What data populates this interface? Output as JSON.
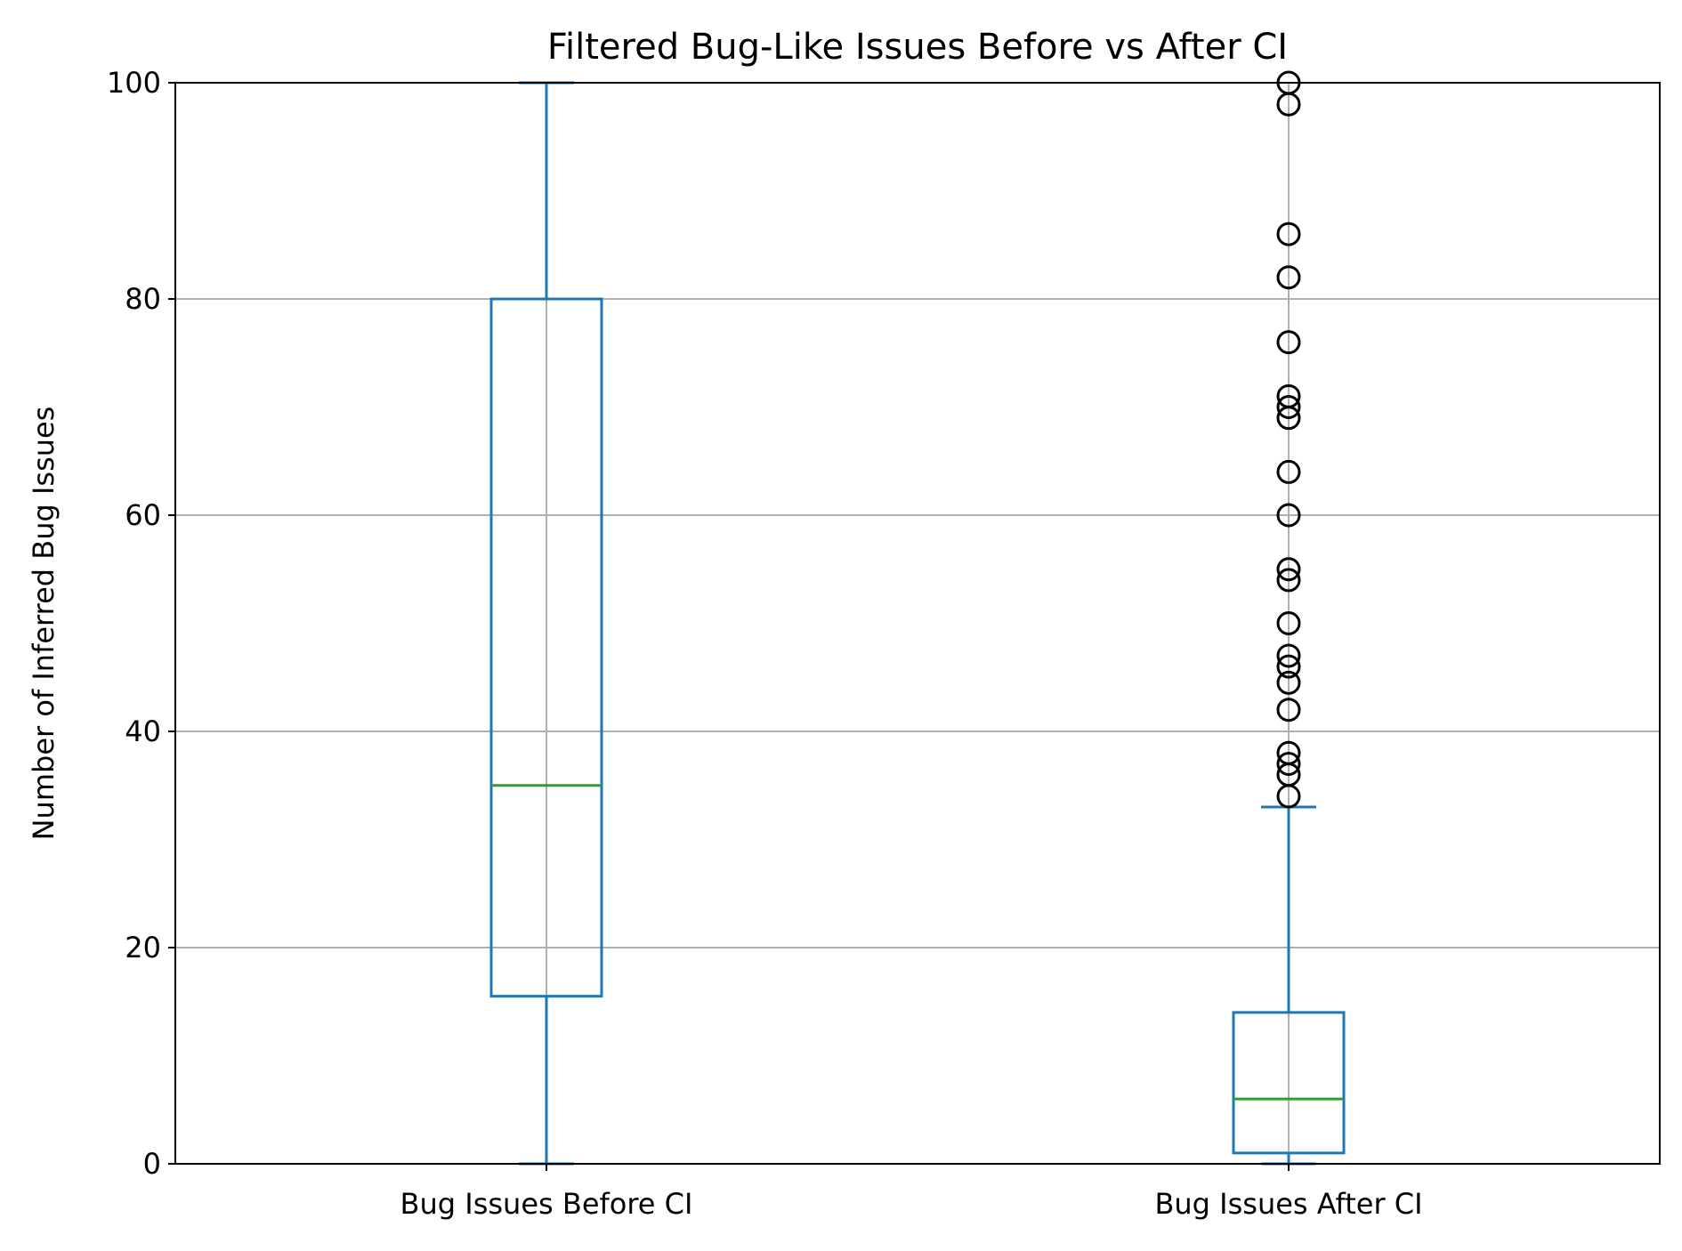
{
  "chart_data": {
    "type": "box",
    "title": "Filtered Bug-Like Issues Before vs After CI",
    "xlabel": "",
    "ylabel": "Number of Inferred Bug Issues",
    "ylim": [
      0,
      100
    ],
    "yticks": [
      0,
      20,
      40,
      60,
      80,
      100
    ],
    "grid": true,
    "categories": [
      "Bug Issues Before CI",
      "Bug Issues After CI"
    ],
    "boxes": [
      {
        "name": "Bug Issues Before CI",
        "whisker_low": 0,
        "q1": 15.5,
        "median": 35,
        "q3": 80,
        "whisker_high": 100,
        "fliers": []
      },
      {
        "name": "Bug Issues After CI",
        "whisker_low": 0,
        "q1": 1,
        "median": 6,
        "q3": 14,
        "whisker_high": 33,
        "fliers": [
          34,
          36,
          37,
          38,
          42,
          44.5,
          46,
          47,
          50,
          54,
          55,
          60,
          64,
          69,
          70,
          71,
          76,
          82,
          86,
          98,
          100
        ]
      }
    ],
    "colors": {
      "box": "#1f77b4",
      "median": "#2ca02c",
      "grid": "#b0b0b0",
      "flier": "#000000",
      "axes": "#000000"
    }
  }
}
